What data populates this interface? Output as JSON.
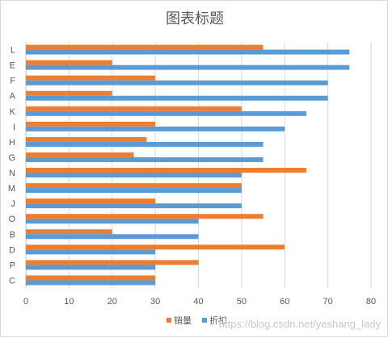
{
  "chart_data": {
    "type": "bar",
    "orientation": "horizontal",
    "title": "图表标题",
    "categories": [
      "L",
      "E",
      "F",
      "A",
      "K",
      "I",
      "H",
      "G",
      "N",
      "M",
      "J",
      "O",
      "B",
      "D",
      "P",
      "C"
    ],
    "series": [
      {
        "name": "销量",
        "color": "#ed7d31",
        "values": [
          55,
          20,
          30,
          20,
          50,
          30,
          28,
          25,
          65,
          50,
          30,
          55,
          20,
          60,
          40,
          30
        ]
      },
      {
        "name": "折扣",
        "color": "#5b9bd5",
        "values": [
          75,
          75,
          70,
          70,
          65,
          60,
          55,
          55,
          50,
          50,
          50,
          40,
          40,
          30,
          30,
          30
        ]
      }
    ],
    "xlim": [
      0,
      80
    ],
    "xticks": [
      0,
      10,
      20,
      30,
      40,
      50,
      60,
      70,
      80
    ],
    "grid": true,
    "legend_position": "bottom"
  },
  "watermark": "https://blog.csdn.net/yeshang_lady"
}
